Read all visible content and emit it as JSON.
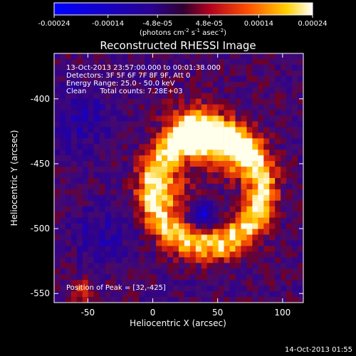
{
  "colorbar": {
    "ticks": [
      "-0.00024",
      "-0.00014",
      "-4.8e-05",
      "4.8e-05",
      "0.00014",
      "0.00024"
    ],
    "unit_label": {
      "prefix": "(photons cm",
      "exp1": "-2",
      "mid1": " s",
      "exp2": "-1",
      "mid2": " asec",
      "exp3": "-2",
      "suffix": ")"
    }
  },
  "chart_data": {
    "type": "heatmap",
    "title": "Reconstructed RHESSI Image",
    "xlabel": "Heliocentric X (arcsec)",
    "ylabel": "Heliocentric Y (arcsec)",
    "xlim": [
      -76,
      116
    ],
    "ylim": [
      -557,
      -365
    ],
    "xticks": [
      -50,
      0,
      50,
      100
    ],
    "yticks": [
      -400,
      -450,
      -500,
      -550
    ],
    "zlim": [
      -0.00024,
      0.00024
    ],
    "peak": [
      32,
      -425
    ],
    "annotations": [
      "13-Oct-2013 23:57:00.000 to 00:01:38.000",
      "Detectors: 3F 5F 6F 7F 8F 9F, Att 0",
      "Energy Range: 25.0 - 50.0 keV",
      "Clean      Total counts: 7.28E+03"
    ],
    "peak_label": "Position of Peak = [32,-425]"
  },
  "footer": {
    "timestamp": "14-Oct-2013 01:55"
  },
  "colors": {
    "background": "#000000",
    "text": "#ffffff"
  }
}
